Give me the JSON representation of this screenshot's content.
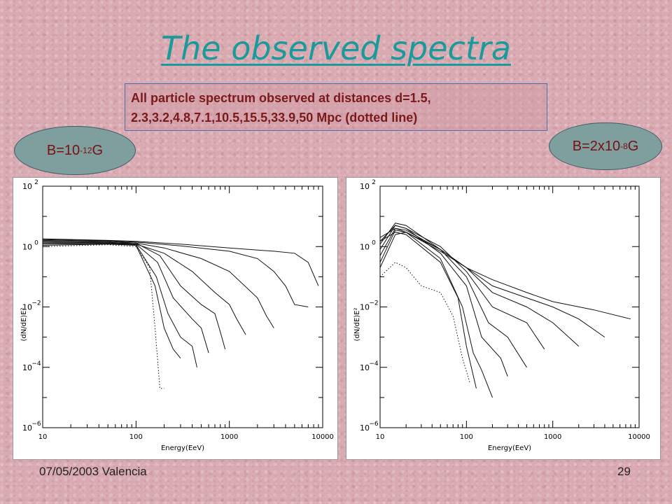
{
  "slide": {
    "title": "The observed spectra",
    "description": "All particle spectrum observed at distances d=1.5, 2.3,3.2,4.8,7.1,10.5,15.5,33.9,50 Mpc (dotted line)",
    "footer_date": "07/05/2003 Valencia",
    "page_number": "29"
  },
  "labels": {
    "left": {
      "prefix": "B=10",
      "exp": "-12",
      "suffix": "G"
    },
    "right": {
      "prefix": "B=2x10",
      "exp": "-8",
      "suffix": "G"
    }
  },
  "colors": {
    "title": "#1a9a9a",
    "label_text": "#7a1010",
    "ellipse_fill": "#7f9f9f",
    "description_text": "#7a1a1a"
  },
  "chart_data": [
    {
      "type": "line",
      "panel": "left",
      "xlabel": "Energy(EeV)",
      "ylabel": "(dN/dE)E²",
      "xscale": "log",
      "yscale": "log",
      "xlim": [
        10,
        10000
      ],
      "ylim": [
        1e-06,
        100
      ],
      "xticks": [
        "10",
        "100",
        "1000",
        "10000"
      ],
      "yticks": [
        {
          "v": 100,
          "label": "10",
          "exp": "2"
        },
        {
          "v": 1,
          "label": "10",
          "exp": "0"
        },
        {
          "v": 0.01,
          "label": "10",
          "exp": "−2"
        },
        {
          "v": 0.0001,
          "label": "10",
          "exp": "−4"
        },
        {
          "v": 1e-06,
          "label": "10",
          "exp": "−6"
        }
      ],
      "grid": false,
      "series": [
        {
          "dotted": false,
          "points": [
            [
              10,
              1.8
            ],
            [
              50,
              1.6
            ],
            [
              100,
              1.5
            ],
            [
              300,
              1.2
            ],
            [
              1000,
              0.9
            ],
            [
              3000,
              0.7
            ],
            [
              5000,
              0.6
            ],
            [
              7000,
              0.3
            ],
            [
              9000,
              0.05
            ]
          ]
        },
        {
          "dotted": false,
          "points": [
            [
              10,
              1.7
            ],
            [
              50,
              1.55
            ],
            [
              100,
              1.4
            ],
            [
              300,
              1.05
            ],
            [
              1000,
              0.7
            ],
            [
              2000,
              0.4
            ],
            [
              3000,
              0.15
            ],
            [
              4000,
              0.05
            ],
            [
              5000,
              0.012
            ],
            [
              7000,
              0.01
            ]
          ]
        },
        {
          "dotted": false,
          "points": [
            [
              10,
              1.6
            ],
            [
              50,
              1.5
            ],
            [
              100,
              1.3
            ],
            [
              200,
              0.9
            ],
            [
              500,
              0.4
            ],
            [
              1000,
              0.15
            ],
            [
              2000,
              0.02
            ],
            [
              2500,
              0.005
            ],
            [
              3000,
              0.002
            ]
          ]
        },
        {
          "dotted": false,
          "points": [
            [
              10,
              1.5
            ],
            [
              50,
              1.4
            ],
            [
              100,
              1.2
            ],
            [
              200,
              0.6
            ],
            [
              400,
              0.15
            ],
            [
              700,
              0.03
            ],
            [
              1000,
              0.012
            ],
            [
              1200,
              0.004
            ],
            [
              1500,
              0.0012
            ]
          ]
        },
        {
          "dotted": false,
          "points": [
            [
              10,
              1.4
            ],
            [
              50,
              1.35
            ],
            [
              100,
              1.3
            ],
            [
              180,
              0.5
            ],
            [
              300,
              0.05
            ],
            [
              500,
              0.012
            ],
            [
              700,
              0.006
            ],
            [
              800,
              0.0015
            ],
            [
              900,
              0.0004
            ]
          ]
        },
        {
          "dotted": false,
          "points": [
            [
              10,
              1.3
            ],
            [
              50,
              1.3
            ],
            [
              100,
              1.2
            ],
            [
              170,
              0.3
            ],
            [
              250,
              0.02
            ],
            [
              400,
              0.004
            ],
            [
              500,
              0.002
            ],
            [
              600,
              0.0003
            ]
          ]
        },
        {
          "dotted": false,
          "points": [
            [
              10,
              1.2
            ],
            [
              50,
              1.25
            ],
            [
              100,
              1.15
            ],
            [
              165,
              0.1
            ],
            [
              220,
              0.006
            ],
            [
              300,
              0.001
            ],
            [
              400,
              0.0005
            ],
            [
              450,
              0.0001
            ]
          ]
        },
        {
          "dotted": false,
          "points": [
            [
              10,
              1.1
            ],
            [
              50,
              1.2
            ],
            [
              100,
              1.1
            ],
            [
              160,
              0.05
            ],
            [
              200,
              0.002
            ],
            [
              250,
              0.0004
            ],
            [
              300,
              0.0002
            ]
          ]
        },
        {
          "dotted": true,
          "points": [
            [
              10,
              1.0
            ],
            [
              50,
              1.15
            ],
            [
              100,
              1.0
            ],
            [
              140,
              0.2
            ],
            [
              160,
              0.002
            ],
            [
              180,
              2e-05
            ],
            [
              200,
              2e-05
            ]
          ]
        }
      ]
    },
    {
      "type": "line",
      "panel": "right",
      "xlabel": "Energy(EeV)",
      "ylabel": "(dN/dE)E²",
      "xscale": "log",
      "yscale": "log",
      "xlim": [
        10,
        10000
      ],
      "ylim": [
        1e-06,
        100
      ],
      "xticks": [
        "10",
        "100",
        "1000",
        "10000"
      ],
      "yticks": [
        {
          "v": 100,
          "label": "10",
          "exp": "2"
        },
        {
          "v": 1,
          "label": "10",
          "exp": "0"
        },
        {
          "v": 0.01,
          "label": "10",
          "exp": "−2"
        },
        {
          "v": 0.0001,
          "label": "10",
          "exp": "−4"
        },
        {
          "v": 1e-06,
          "label": "10",
          "exp": "−6"
        }
      ],
      "grid": false,
      "series": [
        {
          "dotted": false,
          "points": [
            [
              10,
              0.2
            ],
            [
              15,
              2.5
            ],
            [
              20,
              3
            ],
            [
              50,
              0.8
            ],
            [
              100,
              0.2
            ],
            [
              200,
              0.08
            ],
            [
              500,
              0.03
            ],
            [
              1000,
              0.015
            ],
            [
              3000,
              0.008
            ],
            [
              8000,
              0.004
            ]
          ]
        },
        {
          "dotted": false,
          "points": [
            [
              10,
              0.3
            ],
            [
              15,
              3.5
            ],
            [
              20,
              3
            ],
            [
              50,
              0.7
            ],
            [
              100,
              0.2
            ],
            [
              200,
              0.05
            ],
            [
              500,
              0.02
            ],
            [
              1000,
              0.01
            ],
            [
              2000,
              0.004
            ],
            [
              4000,
              0.001
            ]
          ]
        },
        {
          "dotted": false,
          "points": [
            [
              10,
              0.5
            ],
            [
              15,
              4
            ],
            [
              20,
              3.5
            ],
            [
              50,
              0.8
            ],
            [
              100,
              0.2
            ],
            [
              200,
              0.03
            ],
            [
              500,
              0.01
            ],
            [
              1000,
              0.003
            ],
            [
              2000,
              0.0005
            ]
          ]
        },
        {
          "dotted": false,
          "points": [
            [
              10,
              0.8
            ],
            [
              15,
              5
            ],
            [
              20,
              4
            ],
            [
              50,
              1
            ],
            [
              100,
              0.15
            ],
            [
              200,
              0.01
            ],
            [
              500,
              0.003
            ],
            [
              800,
              0.0004
            ]
          ]
        },
        {
          "dotted": false,
          "points": [
            [
              10,
              1.2
            ],
            [
              15,
              6
            ],
            [
              20,
              5
            ],
            [
              50,
              0.8
            ],
            [
              100,
              0.1
            ],
            [
              180,
              0.003
            ],
            [
              300,
              0.001
            ],
            [
              500,
              0.0001
            ]
          ]
        },
        {
          "dotted": false,
          "points": [
            [
              10,
              1.5
            ],
            [
              15,
              5
            ],
            [
              20,
              4
            ],
            [
              50,
              0.6
            ],
            [
              100,
              0.05
            ],
            [
              150,
              0.001
            ],
            [
              250,
              0.0002
            ],
            [
              300,
              5e-05
            ]
          ]
        },
        {
          "dotted": false,
          "points": [
            [
              10,
              2
            ],
            [
              15,
              4
            ],
            [
              20,
              3
            ],
            [
              50,
              0.4
            ],
            [
              90,
              0.01
            ],
            [
              120,
              0.0003
            ],
            [
              150,
              8e-05
            ],
            [
              200,
              1e-05
            ]
          ]
        },
        {
          "dotted": false,
          "points": [
            [
              10,
              1.5
            ],
            [
              15,
              3
            ],
            [
              20,
              2.5
            ],
            [
              50,
              0.3
            ],
            [
              80,
              0.02
            ],
            [
              100,
              0.0005
            ],
            [
              130,
              2e-05
            ]
          ]
        },
        {
          "dotted": true,
          "points": [
            [
              10,
              0.1
            ],
            [
              15,
              0.3
            ],
            [
              20,
              0.2
            ],
            [
              30,
              0.05
            ],
            [
              50,
              0.03
            ],
            [
              70,
              0.005
            ],
            [
              90,
              0.0002
            ],
            [
              110,
              3e-05
            ]
          ]
        }
      ]
    }
  ]
}
